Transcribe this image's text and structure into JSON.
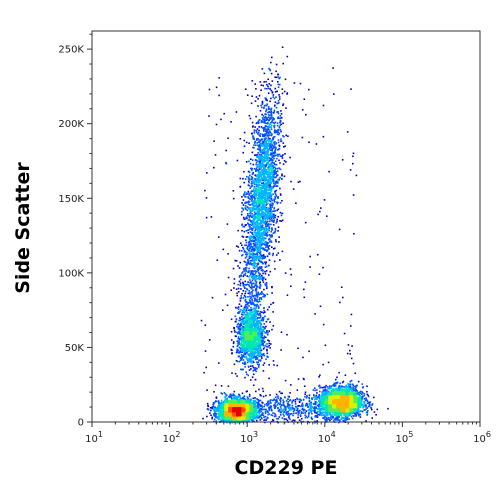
{
  "chart_data": {
    "type": "scatter",
    "subtype": "flow-cytometry-density-dot-plot",
    "xlabel": "CD229 PE",
    "ylabel": "Side Scatter",
    "x_scale": "log",
    "xlim": [
      10,
      1000000
    ],
    "ylim": [
      0,
      262144
    ],
    "x_ticks": [
      {
        "value": 10,
        "base": "10",
        "exp": "1"
      },
      {
        "value": 100,
        "base": "10",
        "exp": "2"
      },
      {
        "value": 1000,
        "base": "10",
        "exp": "3"
      },
      {
        "value": 10000,
        "base": "10",
        "exp": "4"
      },
      {
        "value": 100000,
        "base": "10",
        "exp": "5"
      },
      {
        "value": 1000000,
        "base": "10",
        "exp": "6"
      }
    ],
    "y_ticks": [
      {
        "value": 0,
        "label": "0"
      },
      {
        "value": 50000,
        "label": "50K"
      },
      {
        "value": 100000,
        "label": "100K"
      },
      {
        "value": 150000,
        "label": "150K"
      },
      {
        "value": 200000,
        "label": "200K"
      },
      {
        "value": 250000,
        "label": "250K"
      }
    ],
    "grid": false,
    "legend": "none",
    "colormap": [
      "#0000c8",
      "#0050ff",
      "#00b4ff",
      "#00e6b4",
      "#50f050",
      "#dcf000",
      "#ffb400",
      "#ff5000",
      "#e60000"
    ],
    "populations": [
      {
        "x_center": 1500,
        "y_center": 150000,
        "x_spread_decades": 0.1,
        "y_spread": 35000,
        "density": "high"
      },
      {
        "x_center": 1100,
        "y_center": 57000,
        "x_spread_decades": 0.09,
        "y_spread": 9000,
        "density": "medium"
      },
      {
        "x_center": 700,
        "y_center": 8000,
        "x_spread_decades": 0.12,
        "y_spread": 4000,
        "density": "very-high"
      },
      {
        "x_center": 16000,
        "y_center": 14000,
        "x_spread_decades": 0.14,
        "y_spread": 5000,
        "density": "very-high"
      }
    ]
  }
}
